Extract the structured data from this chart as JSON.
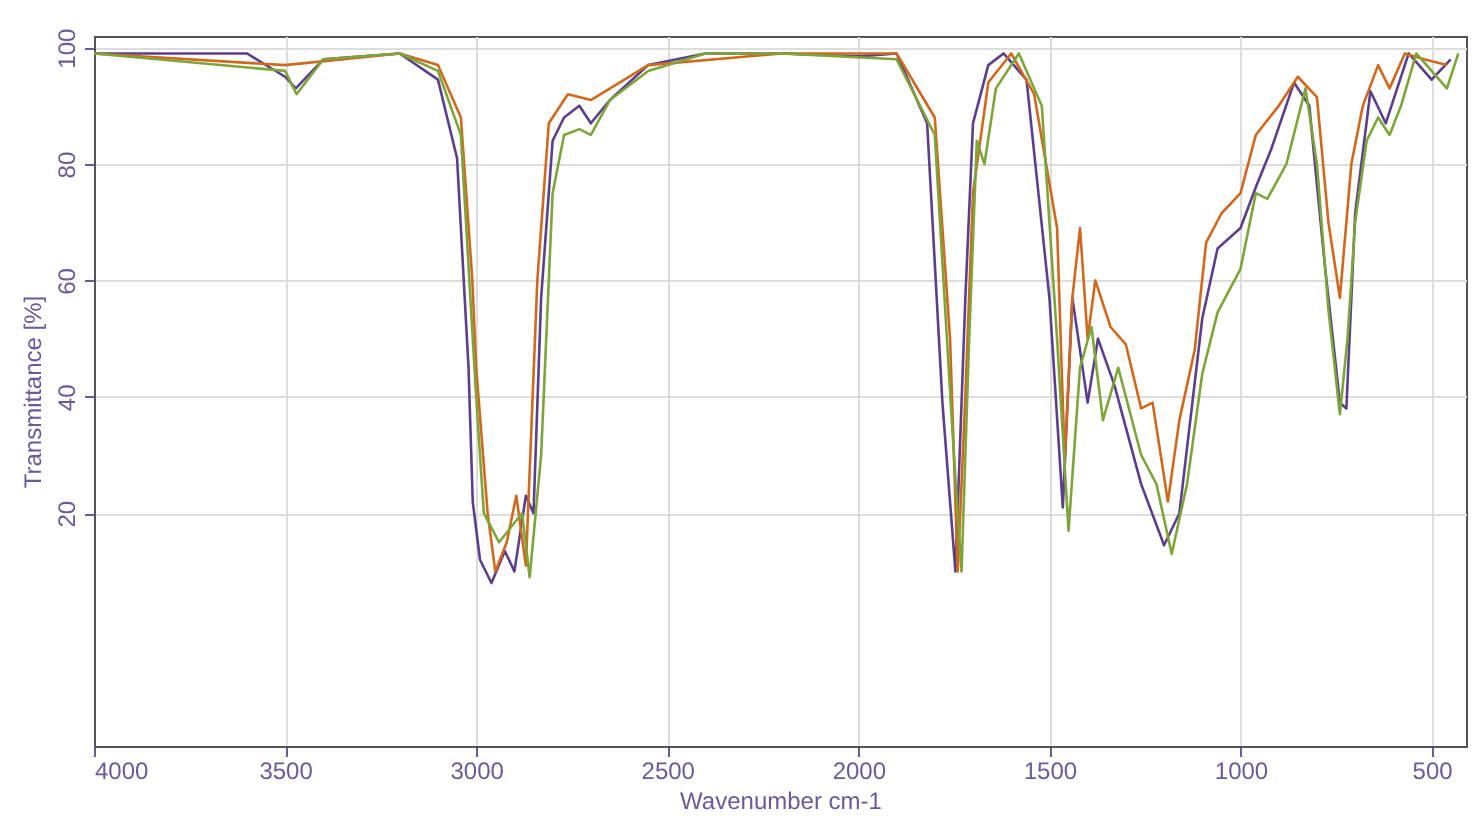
{
  "chart_data": {
    "type": "line",
    "xlabel": "Wavenumber cm-1",
    "ylabel": "Transmittance [%]",
    "xlim": [
      4000,
      410
    ],
    "ylim": [
      -20,
      102
    ],
    "xticks": [
      4000,
      3500,
      3000,
      2500,
      2000,
      1500,
      1000,
      500
    ],
    "yticks": [
      20,
      40,
      60,
      80,
      100
    ],
    "grid": true,
    "marker": "none",
    "line_style": "solid",
    "series": [
      {
        "color": "#5b3f8c",
        "x": [
          4000,
          3600,
          3500,
          3472,
          3400,
          3200,
          3100,
          3050,
          3020,
          3009,
          2990,
          2960,
          2925,
          2900,
          2870,
          2850,
          2830,
          2800,
          2770,
          2730,
          2700,
          2650,
          2550,
          2400,
          2200,
          2000,
          1900,
          1820,
          1780,
          1746,
          1720,
          1700,
          1660,
          1620,
          1560,
          1500,
          1465,
          1440,
          1400,
          1373,
          1330,
          1260,
          1200,
          1160,
          1100,
          1060,
          1000,
          960,
          920,
          860,
          820,
          780,
          740,
          723,
          700,
          660,
          620,
          560,
          500,
          450
        ],
        "values": [
          99,
          99,
          95,
          93,
          98,
          99,
          94.5,
          81,
          45,
          22,
          12,
          8,
          13.5,
          10,
          23,
          20,
          57,
          84,
          88,
          90,
          87,
          91,
          97,
          99,
          99,
          98.5,
          99,
          87,
          39,
          10,
          57,
          87,
          97,
          99,
          94.5,
          57,
          21,
          57,
          39,
          50,
          42,
          25,
          14.5,
          20,
          53.5,
          65.5,
          69,
          76,
          82.5,
          94,
          90,
          63,
          39,
          38,
          71.5,
          92.5,
          87,
          99,
          94.5,
          98
        ]
      },
      {
        "color": "#d0691e",
        "x": [
          4000,
          3500,
          3200,
          3100,
          3040,
          3010,
          3000,
          2970,
          2950,
          2920,
          2895,
          2870,
          2840,
          2810,
          2760,
          2700,
          2550,
          2200,
          1900,
          1800,
          1760,
          1740,
          1720,
          1700,
          1660,
          1600,
          1540,
          1480,
          1460,
          1440,
          1420,
          1400,
          1380,
          1340,
          1300,
          1260,
          1230,
          1190,
          1160,
          1120,
          1090,
          1050,
          1000,
          960,
          900,
          850,
          800,
          770,
          740,
          710,
          680,
          640,
          610,
          570,
          520,
          460
        ],
        "values": [
          99,
          97,
          99,
          97,
          88,
          60,
          45,
          20,
          10,
          15,
          23,
          11,
          60,
          87,
          92,
          91,
          97,
          99,
          99,
          88,
          50,
          10,
          40,
          75,
          94,
          99,
          92,
          69,
          29,
          57,
          69,
          50,
          60,
          52,
          49,
          38,
          39,
          22,
          36,
          48,
          66.5,
          71.5,
          75,
          85,
          90,
          95,
          91.5,
          70,
          57,
          80,
          90,
          97,
          93,
          99,
          98,
          97
        ]
      },
      {
        "color": "#7ea53a",
        "x": [
          4000,
          3500,
          3470,
          3400,
          3200,
          3100,
          3040,
          3000,
          2980,
          2940,
          2880,
          2860,
          2830,
          2800,
          2770,
          2730,
          2700,
          2650,
          2550,
          2400,
          2200,
          1900,
          1800,
          1750,
          1730,
          1710,
          1690,
          1670,
          1640,
          1580,
          1520,
          1480,
          1450,
          1420,
          1390,
          1360,
          1320,
          1260,
          1220,
          1180,
          1140,
          1100,
          1060,
          1000,
          960,
          930,
          880,
          830,
          800,
          770,
          740,
          720,
          700,
          670,
          640,
          610,
          580,
          540,
          500,
          460,
          430
        ],
        "values": [
          99,
          96,
          92,
          98,
          99,
          96,
          85,
          40,
          20,
          15,
          20,
          9,
          30,
          75,
          85,
          86,
          85,
          91,
          96,
          99,
          99,
          98,
          85,
          30,
          10,
          50,
          84,
          80,
          93,
          99,
          90,
          50,
          17,
          45,
          52,
          36,
          45,
          30,
          25,
          13,
          25,
          44,
          54.5,
          62,
          75,
          74,
          80,
          93,
          80,
          55,
          37,
          50,
          70,
          84,
          88,
          85,
          90,
          99,
          96,
          93,
          99
        ]
      }
    ]
  }
}
